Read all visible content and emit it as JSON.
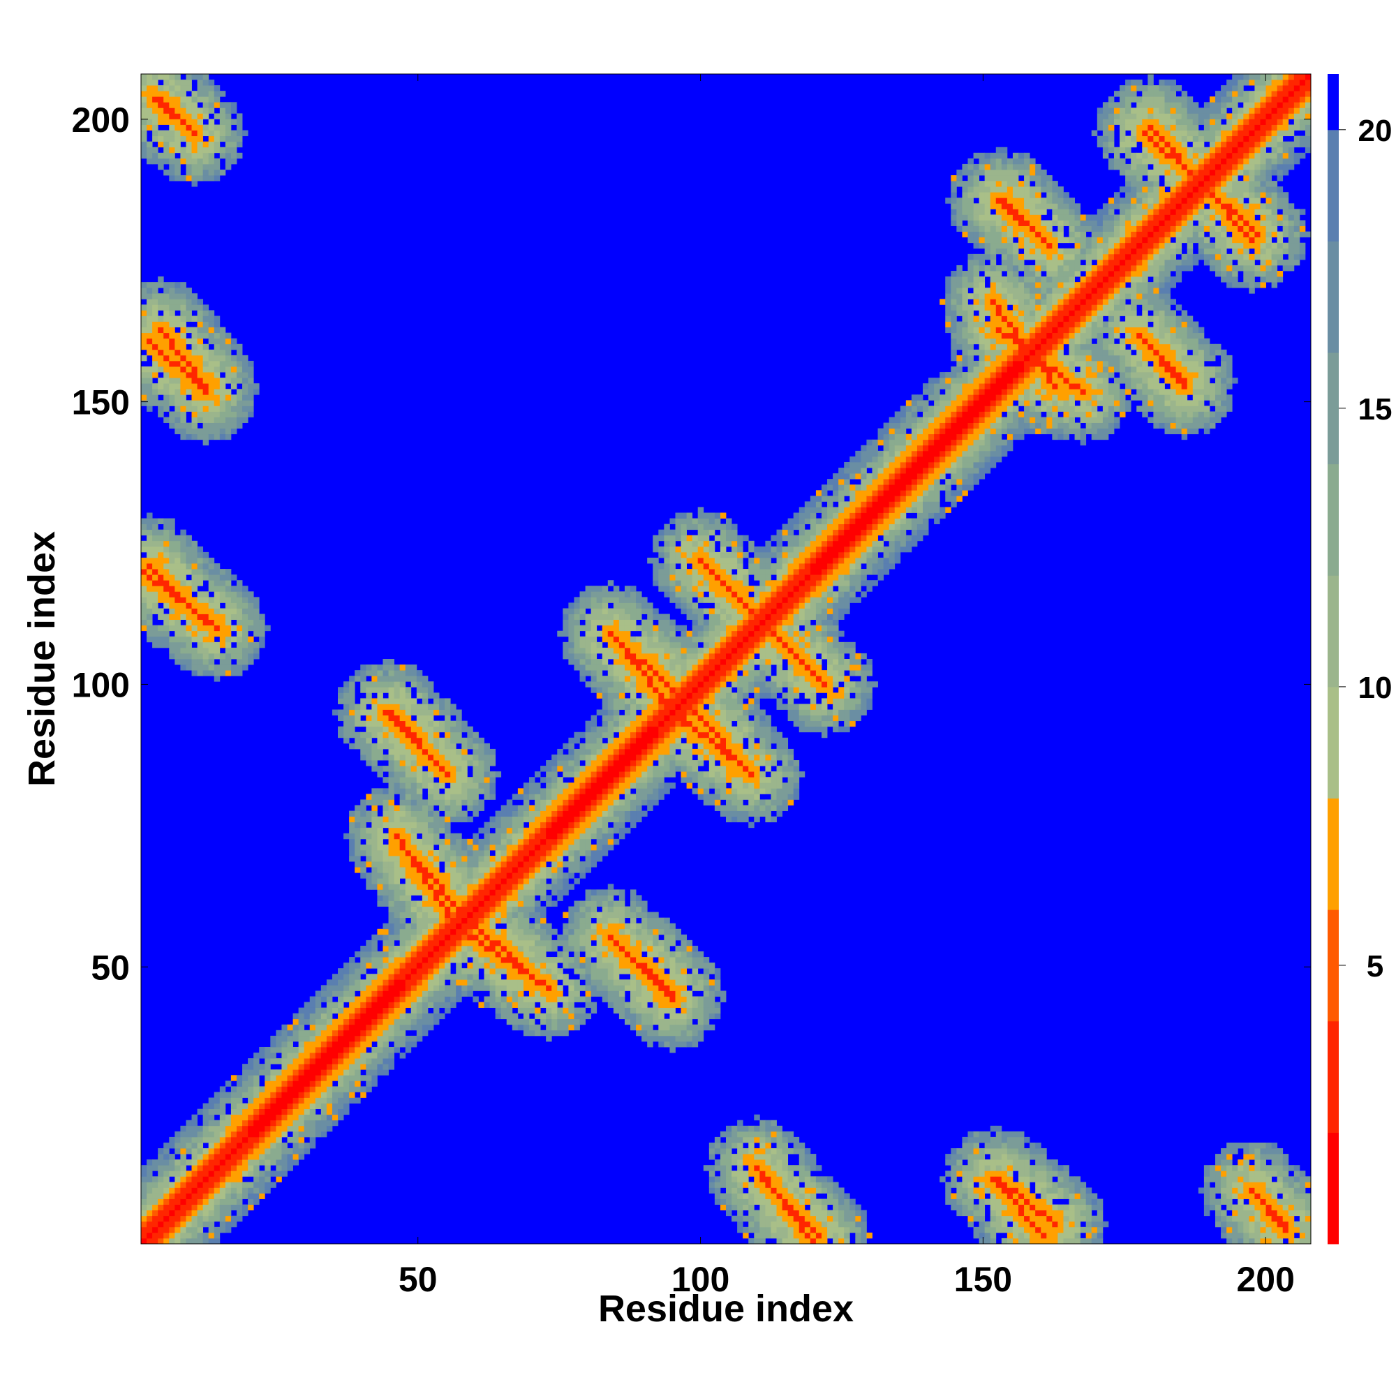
{
  "chart_data": {
    "type": "heatmap",
    "title": "",
    "xlabel": "Residue index",
    "ylabel": "Residue index",
    "xlim": [
      1,
      208
    ],
    "ylim": [
      1,
      208
    ],
    "x_ticks": [
      50,
      100,
      150,
      200
    ],
    "y_ticks": [
      50,
      100,
      150,
      200
    ],
    "x_tick_labels": [
      "50",
      "100",
      "150",
      "200"
    ],
    "y_tick_labels": [
      "50",
      "100",
      "150",
      "200"
    ],
    "n_residues": 208,
    "colorbar": {
      "ticks": [
        5,
        10,
        15,
        20
      ],
      "tick_labels": [
        "5",
        "10",
        "15",
        "20"
      ],
      "range": [
        0,
        21
      ],
      "levels": [
        {
          "min": 0,
          "max": 2,
          "color": "#ff0000"
        },
        {
          "min": 2,
          "max": 4,
          "color": "#ff2600"
        },
        {
          "min": 4,
          "max": 6,
          "color": "#ff5a00"
        },
        {
          "min": 6,
          "max": 8,
          "color": "#ffa000"
        },
        {
          "min": 8,
          "max": 10,
          "color": "#a9bf88"
        },
        {
          "min": 10,
          "max": 12,
          "color": "#9bb58c"
        },
        {
          "min": 12,
          "max": 14,
          "color": "#8aab8f"
        },
        {
          "min": 14,
          "max": 16,
          "color": "#7b9c98"
        },
        {
          "min": 16,
          "max": 18,
          "color": "#6a8ea3"
        },
        {
          "min": 18,
          "max": 20,
          "color": "#5a7fb0"
        },
        {
          "min": 20,
          "max": 21,
          "color": "#0000ff"
        }
      ]
    },
    "description_values": {
      "diagonal_distance": 3.8,
      "background_distance": 21
    },
    "features": {
      "antidiagonal_contacts": [
        {
          "x": [
            3,
            10
          ],
          "y": [
            204,
            198
          ]
        },
        {
          "x": [
            2,
            12
          ],
          "y": [
            161,
            152
          ]
        },
        {
          "x": [
            1,
            14
          ],
          "y": [
            120,
            110
          ]
        },
        {
          "x": [
            44,
            55
          ],
          "y": [
            95,
            84
          ]
        },
        {
          "x": [
            46,
            56
          ],
          "y": [
            73,
            58
          ]
        },
        {
          "x": [
            58,
            70
          ],
          "y": [
            59,
            48
          ]
        },
        {
          "x": [
            84,
            95
          ],
          "y": [
            55,
            45
          ]
        },
        {
          "x": [
            84,
            96
          ],
          "y": [
            109,
            98
          ]
        },
        {
          "x": [
            93,
            108
          ],
          "y": [
            97,
            85
          ]
        },
        {
          "x": [
            100,
            122
          ],
          "y": [
            122,
            100
          ]
        },
        {
          "x": [
            111,
            121
          ],
          "y": [
            12,
            2
          ]
        },
        {
          "x": [
            153,
            163
          ],
          "y": [
            12,
            4
          ]
        },
        {
          "x": [
            198,
            204
          ],
          "y": [
            10,
            4
          ]
        },
        {
          "x": [
            154,
            161
          ],
          "y": [
            186,
            179
          ]
        },
        {
          "x": [
            152,
            163
          ],
          "y": [
            168,
            153
          ]
        },
        {
          "x": [
            178,
            186
          ],
          "y": [
            162,
            153
          ]
        },
        {
          "x": [
            180,
            198
          ],
          "y": [
            199,
            179
          ]
        }
      ],
      "thick_diagonal_segments": [
        [
          20,
          45
        ],
        [
          73,
          90
        ],
        [
          120,
          155
        ]
      ]
    }
  }
}
